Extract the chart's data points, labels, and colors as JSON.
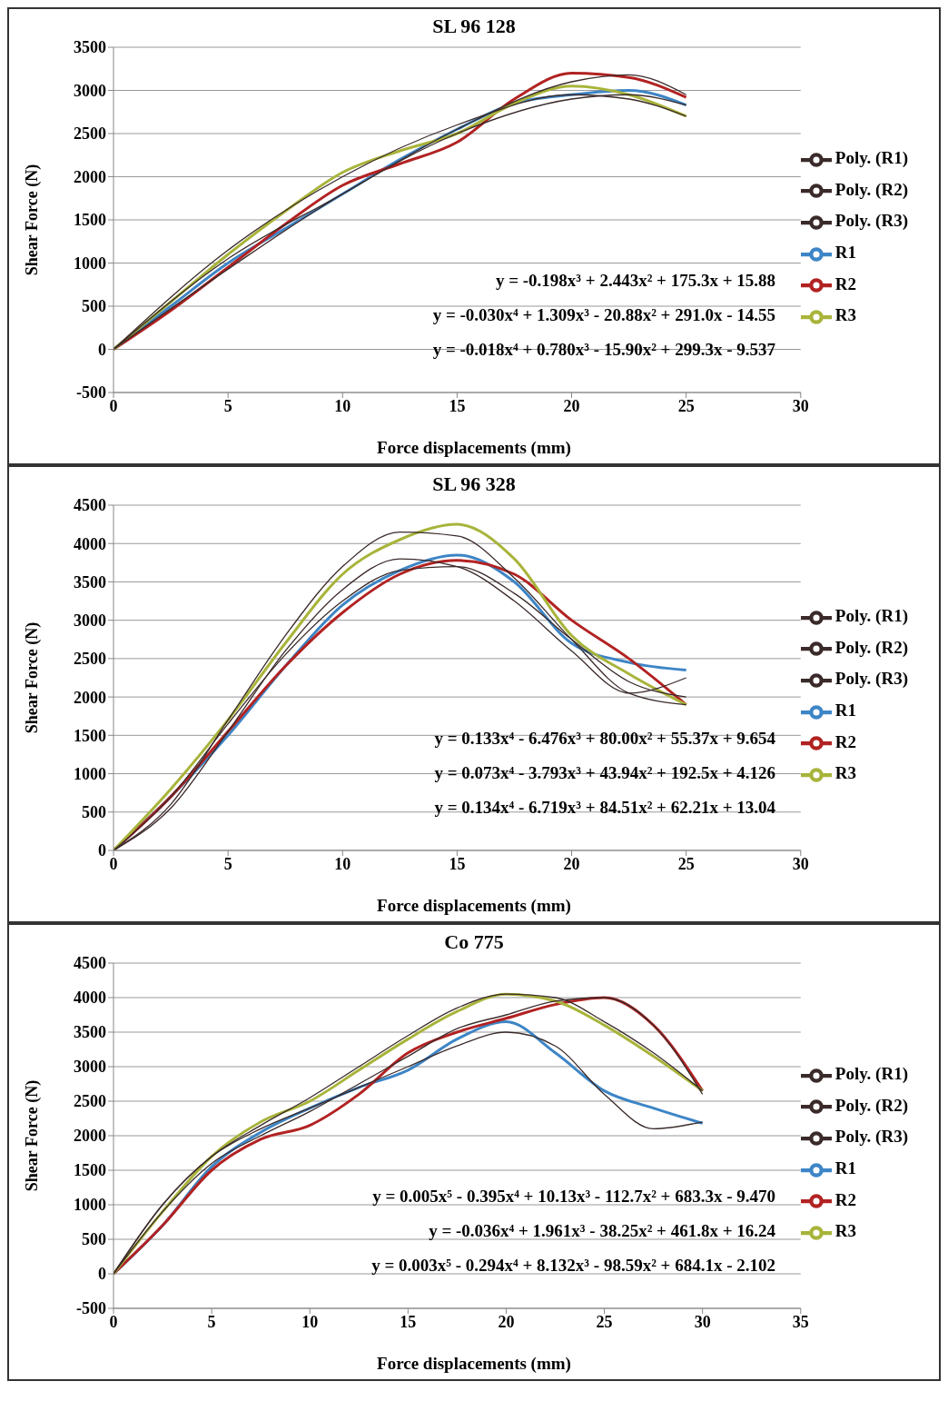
{
  "chart_data": [
    {
      "type": "line",
      "title": "SL 96 128",
      "xlabel": "Force displacements (mm)",
      "ylabel": "Shear Force (N)",
      "xlim": [
        0,
        30
      ],
      "xticks": [
        0,
        5,
        10,
        15,
        20,
        25,
        30
      ],
      "ylim": [
        -500,
        3500
      ],
      "yticks": [
        -500,
        0,
        500,
        1000,
        1500,
        2000,
        2500,
        3000,
        3500
      ],
      "grid": "y",
      "legend": "right",
      "marker": "none",
      "line_style": "solid",
      "annotations": [
        "y = -0.198x³ + 2.443x² + 175.3x + 15.88",
        "y = -0.030x⁴ + 1.309x³ - 20.88x² + 291.0x - 14.55",
        "y = -0.018x⁴ + 0.780x³ - 15.90x² + 299.3x - 9.537"
      ],
      "series": [
        {
          "name": "R1",
          "color": "#3d85c6",
          "x": [
            0,
            2.5,
            5,
            7.5,
            10,
            12.5,
            15,
            17.5,
            20,
            22.5,
            25
          ],
          "values": [
            0,
            500,
            1000,
            1400,
            1800,
            2200,
            2550,
            2850,
            2950,
            3000,
            2830
          ]
        },
        {
          "name": "R2",
          "color": "#b22222",
          "x": [
            0,
            2.5,
            5,
            7.5,
            10,
            12.5,
            15,
            17.5,
            20,
            22.5,
            25
          ],
          "values": [
            0,
            450,
            950,
            1450,
            1900,
            2150,
            2400,
            2900,
            3200,
            3150,
            2920
          ]
        },
        {
          "name": "R3",
          "color": "#a8b43a",
          "x": [
            0,
            2.5,
            5,
            7.5,
            10,
            12.5,
            15,
            17.5,
            20,
            22.5,
            25
          ],
          "values": [
            0,
            550,
            1100,
            1600,
            2050,
            2300,
            2500,
            2850,
            3050,
            2950,
            2700
          ]
        },
        {
          "name": "Poly. (R1)",
          "color": "#3b2a2a",
          "x": [
            0,
            5,
            10,
            15,
            20,
            22.5,
            25
          ],
          "values": [
            0,
            930,
            1800,
            2500,
            2900,
            2950,
            2830
          ]
        },
        {
          "name": "Poly. (R2)",
          "color": "#3b2a2a",
          "x": [
            0,
            5,
            10,
            15,
            20,
            22.5,
            25
          ],
          "values": [
            0,
            1050,
            1800,
            2550,
            3100,
            3180,
            2950
          ]
        },
        {
          "name": "Poly. (R3)",
          "color": "#3b2a2a",
          "x": [
            0,
            5,
            10,
            15,
            20,
            22.5,
            25
          ],
          "values": [
            0,
            1150,
            2000,
            2600,
            2950,
            2900,
            2700
          ]
        }
      ]
    },
    {
      "type": "line",
      "title": "SL 96 328",
      "xlabel": "Force displacements (mm)",
      "ylabel": "Shear Force (N)",
      "xlim": [
        0,
        30
      ],
      "xticks": [
        0,
        5,
        10,
        15,
        20,
        25,
        30
      ],
      "ylim": [
        0,
        4500
      ],
      "yticks": [
        0,
        500,
        1000,
        1500,
        2000,
        2500,
        3000,
        3500,
        4000,
        4500
      ],
      "grid": "y",
      "legend": "right",
      "marker": "none",
      "line_style": "solid",
      "annotations": [
        "y = 0.133x⁴ - 6.476x³ + 80.00x² + 55.37x + 9.654",
        "y = 0.073x⁴ - 3.793x³ + 43.94x² + 192.5x + 4.126",
        "y = 0.134x⁴ - 6.719x³ + 84.51x² + 62.21x + 13.04"
      ],
      "series": [
        {
          "name": "R1",
          "color": "#3d85c6",
          "x": [
            0,
            2.5,
            5,
            7.5,
            10,
            12.5,
            15,
            17.5,
            20,
            22.5,
            25
          ],
          "values": [
            0,
            700,
            1500,
            2400,
            3200,
            3650,
            3850,
            3500,
            2700,
            2450,
            2350
          ]
        },
        {
          "name": "R2",
          "color": "#b22222",
          "x": [
            0,
            2.5,
            5,
            7.5,
            10,
            12.5,
            15,
            17.5,
            20,
            22.5,
            25
          ],
          "values": [
            0,
            700,
            1550,
            2400,
            3100,
            3600,
            3780,
            3600,
            3000,
            2500,
            1900
          ]
        },
        {
          "name": "R3",
          "color": "#a8b43a",
          "x": [
            0,
            2.5,
            5,
            7.5,
            10,
            12.5,
            15,
            17.5,
            20,
            22.5,
            25
          ],
          "values": [
            0,
            800,
            1700,
            2700,
            3600,
            4050,
            4250,
            3800,
            2800,
            2300,
            1900
          ]
        },
        {
          "name": "Poly. (R1)",
          "color": "#3b2a2a",
          "x": [
            0,
            2.5,
            5,
            7.5,
            10,
            12.5,
            15,
            17.5,
            20,
            22.5,
            25
          ],
          "values": [
            0,
            550,
            1550,
            2600,
            3400,
            3800,
            3700,
            3250,
            2600,
            2050,
            2250
          ]
        },
        {
          "name": "Poly. (R2)",
          "color": "#3b2a2a",
          "x": [
            0,
            2.5,
            5,
            7.5,
            10,
            12.5,
            15,
            17.5,
            20,
            22.5,
            25
          ],
          "values": [
            0,
            700,
            1650,
            2550,
            3250,
            3650,
            3700,
            3350,
            2750,
            2200,
            2000
          ]
        },
        {
          "name": "Poly. (R3)",
          "color": "#3b2a2a",
          "x": [
            0,
            2.5,
            5,
            7.5,
            10,
            12.5,
            15,
            17.5,
            20,
            22.5,
            25
          ],
          "values": [
            0,
            600,
            1700,
            2800,
            3700,
            4150,
            4100,
            3550,
            2750,
            2050,
            1900
          ]
        }
      ]
    },
    {
      "type": "line",
      "title": "Co 775",
      "xlabel": "Force displacements (mm)",
      "ylabel": "Shear Force (N)",
      "xlim": [
        0,
        35
      ],
      "xticks": [
        0,
        5,
        10,
        15,
        20,
        25,
        30,
        35
      ],
      "ylim": [
        -500,
        4500
      ],
      "yticks": [
        -500,
        0,
        500,
        1000,
        1500,
        2000,
        2500,
        3000,
        3500,
        4000,
        4500
      ],
      "grid": "y",
      "legend": "right",
      "marker": "none",
      "line_style": "solid",
      "annotations": [
        "y = 0.005x⁵ - 0.395x⁴ + 10.13x³ - 112.7x² + 683.3x - 9.470",
        "y = -0.036x⁴ + 1.961x³ - 38.25x² + 461.8x + 16.24",
        "y = 0.003x⁵ - 0.294x⁴ + 8.132x³ - 98.59x² + 684.1x - 2.102"
      ],
      "series": [
        {
          "name": "R1",
          "color": "#3d85c6",
          "x": [
            0,
            2.5,
            5,
            7.5,
            10,
            12.5,
            15,
            17.5,
            20,
            22.5,
            25,
            27.5,
            30
          ],
          "values": [
            0,
            700,
            1550,
            2050,
            2400,
            2700,
            2950,
            3400,
            3650,
            3200,
            2650,
            2400,
            2180
          ]
        },
        {
          "name": "R2",
          "color": "#b22222",
          "x": [
            0,
            2.5,
            5,
            7.5,
            10,
            12.5,
            15,
            17.5,
            20,
            22.5,
            25,
            27.5,
            30
          ],
          "values": [
            0,
            700,
            1500,
            1950,
            2150,
            2600,
            3200,
            3500,
            3700,
            3900,
            4000,
            3600,
            2650
          ]
        },
        {
          "name": "R3",
          "color": "#a8b43a",
          "x": [
            0,
            2.5,
            5,
            7.5,
            10,
            12.5,
            15,
            17.5,
            20,
            22.5,
            25,
            27.5,
            30
          ],
          "values": [
            0,
            900,
            1700,
            2200,
            2500,
            2950,
            3400,
            3800,
            4050,
            3950,
            3600,
            3150,
            2650
          ]
        },
        {
          "name": "Poly. (R1)",
          "color": "#3b2a2a",
          "x": [
            0,
            2.5,
            5,
            7.5,
            10,
            12.5,
            15,
            17.5,
            20,
            22.5,
            25,
            27.5,
            30
          ],
          "values": [
            0,
            1000,
            1700,
            2100,
            2400,
            2700,
            3000,
            3300,
            3500,
            3300,
            2600,
            2100,
            2200
          ]
        },
        {
          "name": "Poly. (R2)",
          "color": "#3b2a2a",
          "x": [
            0,
            2.5,
            5,
            7.5,
            10,
            12.5,
            15,
            17.5,
            20,
            22.5,
            25,
            27.5,
            30
          ],
          "values": [
            0,
            900,
            1600,
            2000,
            2350,
            2750,
            3150,
            3550,
            3750,
            3950,
            4000,
            3600,
            2600
          ]
        },
        {
          "name": "Poly. (R3)",
          "color": "#3b2a2a",
          "x": [
            0,
            2.5,
            5,
            7.5,
            10,
            12.5,
            15,
            17.5,
            20,
            22.5,
            25,
            27.5,
            30
          ],
          "values": [
            0,
            1000,
            1700,
            2150,
            2550,
            3000,
            3450,
            3850,
            4050,
            4000,
            3650,
            3200,
            2650
          ]
        }
      ]
    }
  ]
}
